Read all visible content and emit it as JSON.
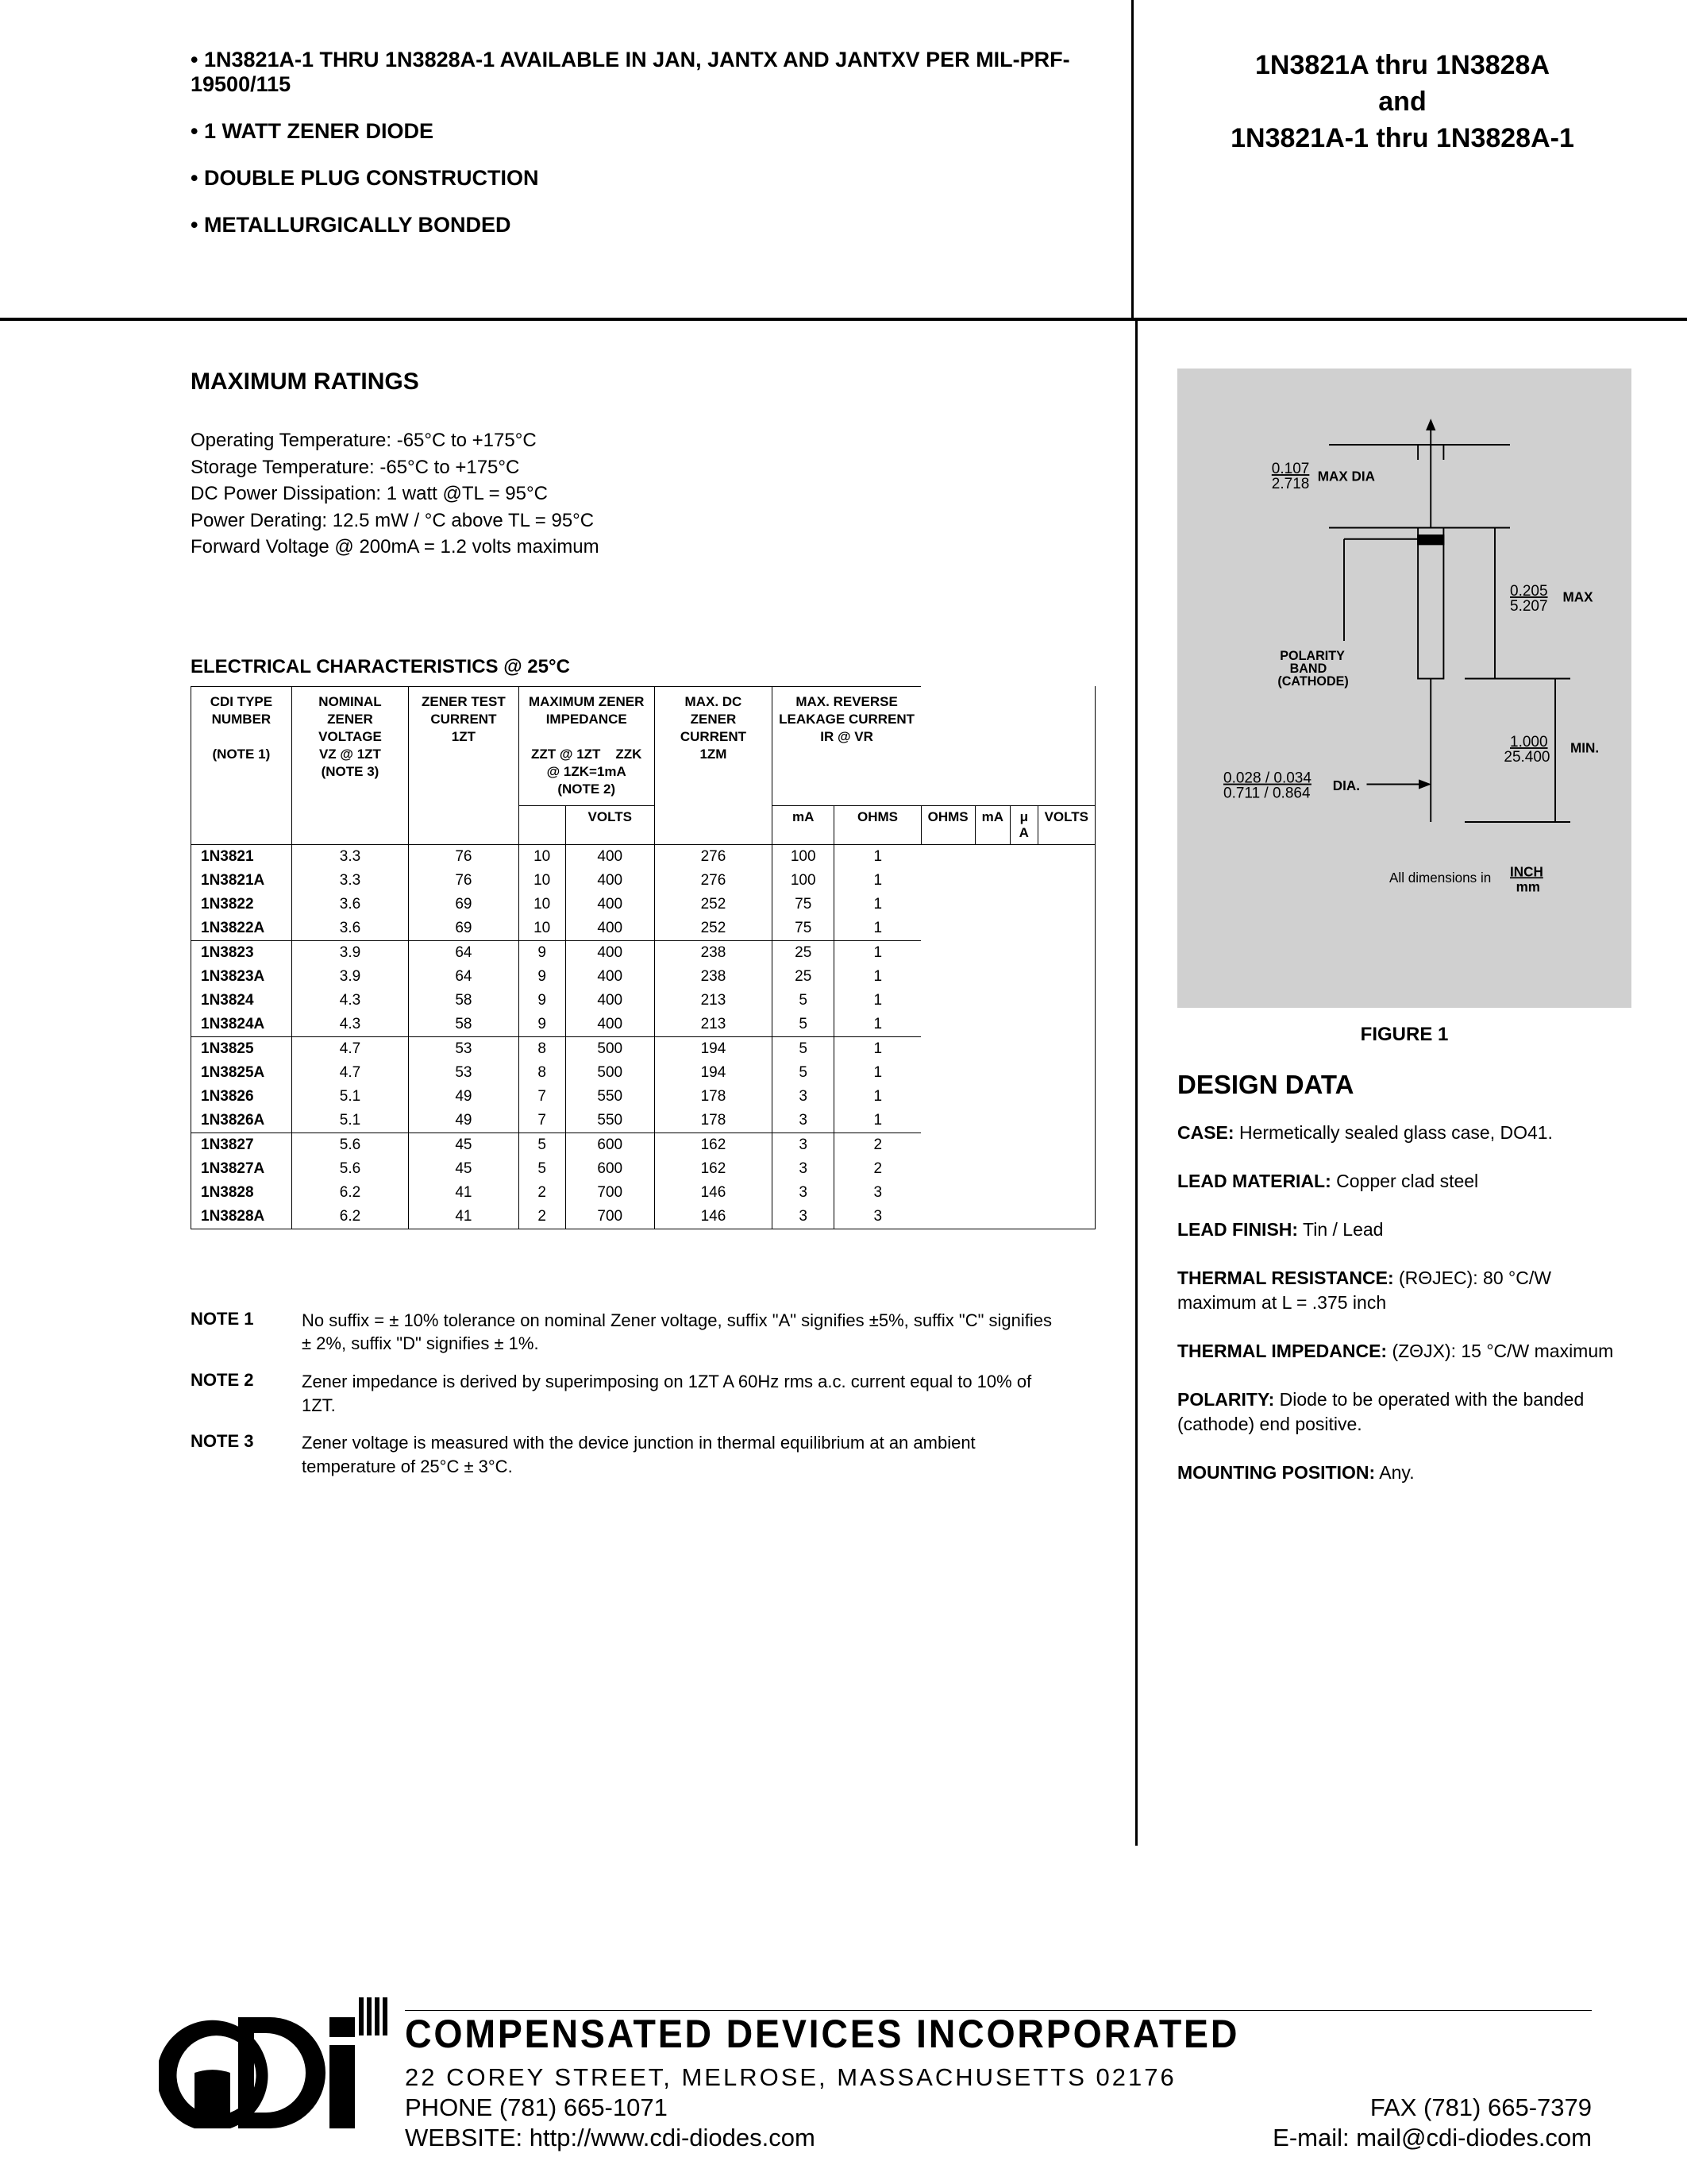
{
  "header": {
    "bullets": [
      "1N3821A-1 THRU 1N3828A-1 AVAILABLE IN JAN, JANTX AND JANTXV PER MIL-PRF-19500/115",
      "1 WATT ZENER DIODE",
      "DOUBLE PLUG CONSTRUCTION",
      "METALLURGICALLY BONDED"
    ],
    "title1": "1N3821A thru 1N3828A",
    "title2": "and",
    "title3": "1N3821A-1 thru 1N3828A-1"
  },
  "maxratings": {
    "heading": "MAXIMUM RATINGS",
    "lines": [
      "Operating Temperature:  -65°C to +175°C",
      "Storage Temperature:  -65°C to +175°C",
      "DC Power Dissipation:  1 watt @TL = 95°C",
      "Power Derating:  12.5 mW / °C above TL = 95°C",
      "Forward Voltage @ 200mA = 1.2 volts maximum"
    ]
  },
  "ec": {
    "heading": "ELECTRICAL CHARACTERISTICS @ 25°C",
    "col_headers": {
      "c0": "CDI TYPE NUMBER",
      "c0b": "(NOTE 1)",
      "c1": "NOMINAL ZENER VOLTAGE",
      "c1b": "VZ @ 1ZT",
      "c1c": "(NOTE 3)",
      "c2": "ZENER TEST CURRENT",
      "c2b": "1ZT",
      "c3": "MAXIMUM  ZENER IMPEDANCE",
      "c3a": "ZZT @ 1ZT",
      "c3b": "ZZK @ 1ZK=1mA",
      "c3note": "(NOTE 2)",
      "c4": "MAX. DC ZENER CURRENT",
      "c4b": "1ZM",
      "c5": "MAX. REVERSE LEAKAGE CURRENT",
      "c5a": "IR @ VR"
    },
    "units": [
      "",
      "VOLTS",
      "mA",
      "OHMS",
      "OHMS",
      "mA",
      "μ A",
      "VOLTS"
    ],
    "rows": [
      [
        "1N3821",
        "3.3",
        "76",
        "10",
        "400",
        "276",
        "100",
        "1"
      ],
      [
        "1N3821A",
        "3.3",
        "76",
        "10",
        "400",
        "276",
        "100",
        "1"
      ],
      [
        "1N3822",
        "3.6",
        "69",
        "10",
        "400",
        "252",
        "75",
        "1"
      ],
      [
        "1N3822A",
        "3.6",
        "69",
        "10",
        "400",
        "252",
        "75",
        "1"
      ],
      [
        "1N3823",
        "3.9",
        "64",
        "9",
        "400",
        "238",
        "25",
        "1"
      ],
      [
        "1N3823A",
        "3.9",
        "64",
        "9",
        "400",
        "238",
        "25",
        "1"
      ],
      [
        "1N3824",
        "4.3",
        "58",
        "9",
        "400",
        "213",
        "5",
        "1"
      ],
      [
        "1N3824A",
        "4.3",
        "58",
        "9",
        "400",
        "213",
        "5",
        "1"
      ],
      [
        "1N3825",
        "4.7",
        "53",
        "8",
        "500",
        "194",
        "5",
        "1"
      ],
      [
        "1N3825A",
        "4.7",
        "53",
        "8",
        "500",
        "194",
        "5",
        "1"
      ],
      [
        "1N3826",
        "5.1",
        "49",
        "7",
        "550",
        "178",
        "3",
        "1"
      ],
      [
        "1N3826A",
        "5.1",
        "49",
        "7",
        "550",
        "178",
        "3",
        "1"
      ],
      [
        "1N3827",
        "5.6",
        "45",
        "5",
        "600",
        "162",
        "3",
        "2"
      ],
      [
        "1N3827A",
        "5.6",
        "45",
        "5",
        "600",
        "162",
        "3",
        "2"
      ],
      [
        "1N3828",
        "6.2",
        "41",
        "2",
        "700",
        "146",
        "3",
        "3"
      ],
      [
        "1N3828A",
        "6.2",
        "41",
        "2",
        "700",
        "146",
        "3",
        "3"
      ]
    ],
    "group_breaks": [
      4,
      8,
      12
    ]
  },
  "notes": [
    {
      "label": "NOTE 1",
      "text": "No suffix = ± 10% tolerance on nominal Zener voltage, suffix \"A\" signifies ±5%, suffix \"C\" signifies ± 2%, suffix \"D\" signifies ± 1%."
    },
    {
      "label": "NOTE 2",
      "text": "Zener impedance is derived by superimposing on 1ZT A 60Hz rms a.c. current equal to 10% of 1ZT."
    },
    {
      "label": "NOTE 3",
      "text": "Zener voltage is measured with the device junction in thermal equilibrium at an ambient temperature of 25°C ± 3°C."
    }
  ],
  "figure": {
    "label": "FIGURE 1",
    "dims": {
      "body_dia_in": "0.107",
      "body_dia_mm": "2.718",
      "body_dia_suf": "MAX DIA",
      "body_len_in": "0.205",
      "body_len_mm": "5.207",
      "body_len_suf": "MAX",
      "lead_len_in": "1.000",
      "lead_len_mm": "25.400",
      "lead_len_suf": "MIN.",
      "lead_dia_in": "0.028 / 0.034",
      "lead_dia_mm": "0.711 / 0.864",
      "lead_dia_suf": "DIA.",
      "polarity": "POLARITY BAND (CATHODE)",
      "units": "All dimensions in",
      "units_inch": "INCH",
      "units_mm": "mm"
    }
  },
  "design": {
    "heading": "DESIGN DATA",
    "items": [
      {
        "k": "CASE:",
        "v": "  Hermetically sealed glass case, DO41."
      },
      {
        "k": "LEAD MATERIAL:",
        "v": " Copper clad steel"
      },
      {
        "k": "LEAD FINISH:",
        "v": " Tin / Lead"
      },
      {
        "k": "THERMAL RESISTANCE:",
        "v": " (RΘJEC): 80 °C/W maximum at L = .375 inch"
      },
      {
        "k": "THERMAL IMPEDANCE:",
        "v": " (ZΘJX): 15 °C/W maximum"
      },
      {
        "k": "POLARITY:",
        "v": " Diode to be operated with the banded (cathode) end positive."
      },
      {
        "k": "MOUNTING POSITION:",
        "v": " Any."
      }
    ]
  },
  "footer": {
    "company": "COMPENSATED DEVICES INCORPORATED",
    "address": "22 COREY STREET, MELROSE, MASSACHUSETTS 02176",
    "phone": "PHONE (781) 665-1071",
    "fax": "FAX (781) 665-7379",
    "website": "WEBSITE:  http://www.cdi-diodes.com",
    "email": "E-mail: mail@cdi-diodes.com"
  }
}
